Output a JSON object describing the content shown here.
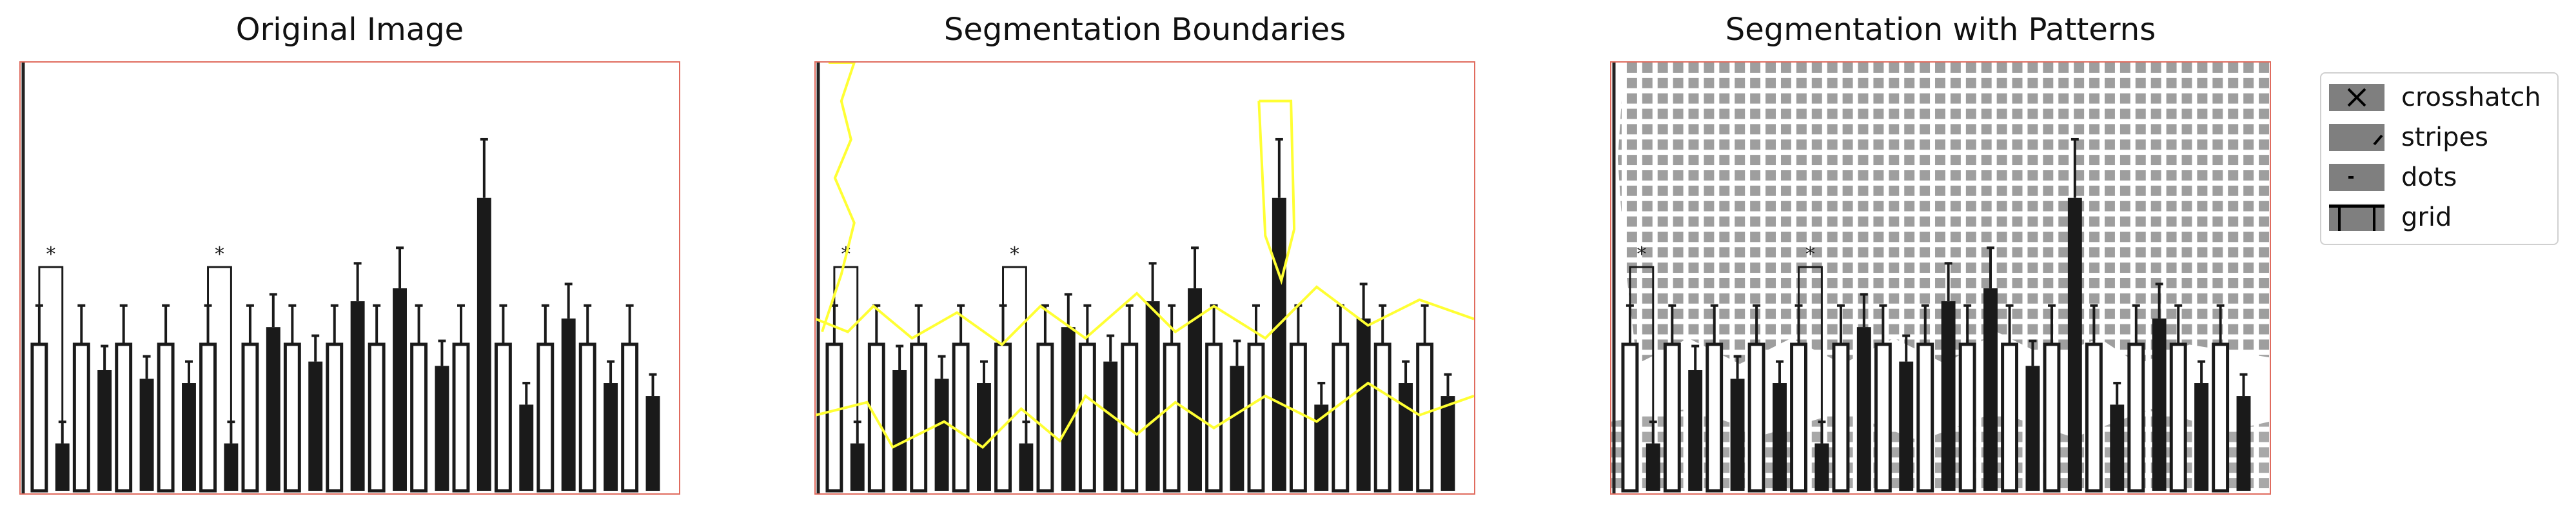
{
  "titles": {
    "original": "Original Image",
    "boundaries": "Segmentation Boundaries",
    "patterns": "Segmentation with Patterns"
  },
  "legend": {
    "items": [
      {
        "label": "crosshatch",
        "icon": "crosshatch-swatch"
      },
      {
        "label": "stripes",
        "icon": "stripes-swatch"
      },
      {
        "label": "dots",
        "icon": "dots-swatch"
      },
      {
        "label": "grid",
        "icon": "grid-swatch"
      }
    ]
  },
  "annotations": {
    "significance_mark": "*"
  },
  "colors": {
    "bar_dark": "#1a1a1a",
    "bar_outline": "#1a1a1a",
    "panel_border": "#e06b5e",
    "boundary": "#ffff33",
    "pattern": "#9e9e9e"
  },
  "bar_groups": [
    {
      "open": 0.34,
      "filled": 0.11,
      "sig": true
    },
    {
      "open": 0.34,
      "filled": 0.28
    },
    {
      "open": 0.34,
      "filled": 0.26
    },
    {
      "open": 0.34,
      "filled": 0.25
    },
    {
      "open": 0.34,
      "filled": 0.11,
      "sig": true
    },
    {
      "open": 0.34,
      "filled": 0.38
    },
    {
      "open": 0.34,
      "filled": 0.3
    },
    {
      "open": 0.34,
      "filled": 0.44
    },
    {
      "open": 0.34,
      "filled": 0.47
    },
    {
      "open": 0.34,
      "filled": 0.29
    },
    {
      "open": 0.34,
      "filled": 0.68
    },
    {
      "open": 0.34,
      "filled": 0.2
    },
    {
      "open": 0.34,
      "filled": 0.4
    },
    {
      "open": 0.34,
      "filled": 0.25
    },
    {
      "open": 0.34,
      "filled": 0.22
    }
  ]
}
